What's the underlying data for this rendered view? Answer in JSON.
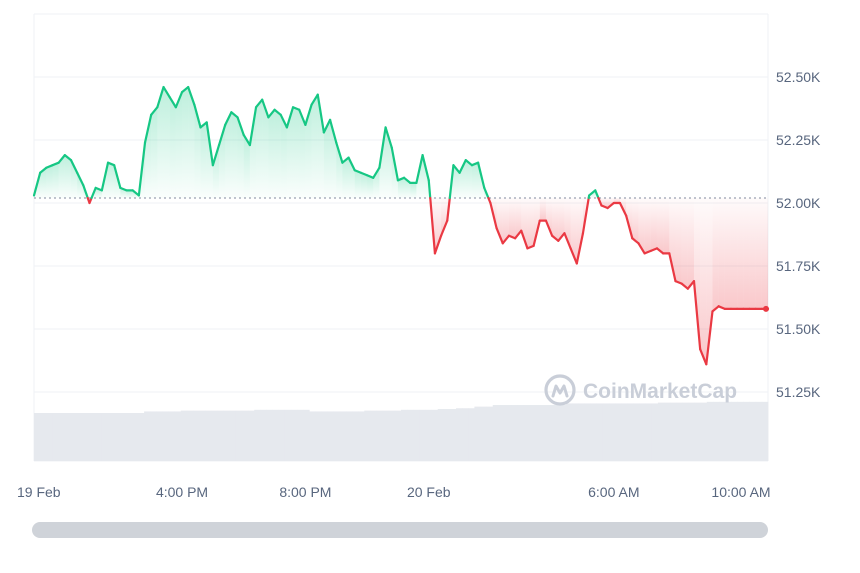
{
  "watermark": {
    "text": "CoinMarketCap",
    "icon": "coinmarketcap-logo-icon"
  },
  "colors": {
    "up": "#16c784",
    "down": "#ea3943",
    "grid": "#eff2f5",
    "volume": "#e6e9ee",
    "baseline": "#808a9d",
    "axis_text": "#58667e"
  },
  "chart_data": {
    "type": "line",
    "title": "",
    "xlabel": "",
    "ylabel": "",
    "baseline": 52020,
    "ylim": [
      51000,
      52700
    ],
    "y_ticks": [
      {
        "value": 51250,
        "label": "51.25K"
      },
      {
        "value": 51500,
        "label": "51.50K"
      },
      {
        "value": 51750,
        "label": "51.75K"
      },
      {
        "value": 52000,
        "label": "52.00K"
      },
      {
        "value": 52250,
        "label": "52.25K"
      },
      {
        "value": 52500,
        "label": "52.50K"
      }
    ],
    "x_ticks": [
      "19 Feb",
      "4:00 PM",
      "8:00 PM",
      "20 Feb",
      "6:00 AM",
      "10:00 AM"
    ],
    "x_tick_positions": [
      11.2,
      16,
      20,
      24,
      30,
      34
    ],
    "xlim": [
      11.2,
      35
    ],
    "series": [
      {
        "x": [
          11.2,
          11.4,
          11.6,
          11.8,
          12.0,
          12.2,
          12.4,
          12.6,
          12.8,
          13.0,
          13.2,
          13.4,
          13.6,
          13.8,
          14.0,
          14.2,
          14.4,
          14.6,
          14.8,
          15.0,
          15.2,
          15.4,
          15.6,
          15.8,
          16.0,
          16.2,
          16.4,
          16.6,
          16.8,
          17.0,
          17.2,
          17.4,
          17.6,
          17.8,
          18.0,
          18.2,
          18.4,
          18.6,
          18.8,
          19.0,
          19.2,
          19.4,
          19.6,
          19.8,
          20.0,
          20.2,
          20.4,
          20.6,
          20.8,
          21.0,
          21.2,
          21.4,
          21.6,
          21.8,
          22.0,
          22.2,
          22.4,
          22.6,
          22.8,
          23.0,
          23.2,
          23.4,
          23.6,
          23.8,
          24.0,
          24.2,
          24.4,
          24.6,
          24.8,
          25.0,
          25.2,
          25.4,
          25.6,
          25.8,
          26.0,
          26.2,
          26.4,
          26.6,
          26.8,
          27.0,
          27.2,
          27.4,
          27.6,
          27.8,
          28.0,
          28.2,
          28.4,
          28.6,
          28.8,
          29.0,
          29.2,
          29.4,
          29.6,
          29.8,
          30.0,
          30.2,
          30.4,
          30.6,
          30.8,
          31.0,
          31.2,
          31.4,
          31.6,
          31.8,
          32.0,
          32.2,
          32.4,
          32.6,
          32.8,
          33.0,
          33.2,
          33.4,
          33.6,
          33.8,
          34.0,
          34.2,
          34.4,
          34.6,
          34.8,
          35.0
        ],
        "y": [
          52030,
          52120,
          52140,
          52150,
          52160,
          52190,
          52170,
          52120,
          52070,
          52000,
          52060,
          52050,
          52160,
          52150,
          52060,
          52050,
          52050,
          52030,
          52240,
          52350,
          52380,
          52460,
          52420,
          52380,
          52440,
          52460,
          52390,
          52300,
          52320,
          52150,
          52230,
          52310,
          52360,
          52340,
          52270,
          52230,
          52380,
          52410,
          52340,
          52370,
          52350,
          52300,
          52380,
          52370,
          52310,
          52390,
          52430,
          52280,
          52330,
          52240,
          52160,
          52180,
          52130,
          52120,
          52110,
          52100,
          52140,
          52300,
          52220,
          52090,
          52100,
          52080,
          52080,
          52190,
          52090,
          51800,
          51870,
          51930,
          52150,
          52120,
          52170,
          52150,
          52160,
          52060,
          52000,
          51900,
          51840,
          51870,
          51860,
          51890,
          51820,
          51830,
          51930,
          51930,
          51870,
          51850,
          51880,
          51820,
          51760,
          51880,
          52030,
          52050,
          51990,
          51980,
          52000,
          52000,
          51950,
          51860,
          51840,
          51800,
          51810,
          51820,
          51800,
          51800,
          51690,
          51680,
          51660,
          51690,
          51420,
          51360,
          51570,
          51590,
          51580,
          51580,
          51580,
          51580,
          51580,
          51580,
          51580,
          51580
        ]
      }
    ],
    "volume": [
      0.6,
      0.6,
      0.6,
      0.6,
      0.6,
      0.6,
      0.6,
      0.6,
      0.6,
      0.6,
      0.6,
      0.6,
      0.6,
      0.6,
      0.6,
      0.6,
      0.6,
      0.6,
      0.62,
      0.62,
      0.62,
      0.62,
      0.62,
      0.62,
      0.63,
      0.63,
      0.63,
      0.63,
      0.63,
      0.63,
      0.63,
      0.63,
      0.63,
      0.63,
      0.63,
      0.63,
      0.64,
      0.64,
      0.64,
      0.64,
      0.64,
      0.64,
      0.64,
      0.64,
      0.64,
      0.62,
      0.62,
      0.62,
      0.62,
      0.62,
      0.62,
      0.62,
      0.62,
      0.62,
      0.63,
      0.63,
      0.63,
      0.63,
      0.63,
      0.63,
      0.64,
      0.64,
      0.64,
      0.64,
      0.64,
      0.64,
      0.65,
      0.65,
      0.65,
      0.66,
      0.66,
      0.66,
      0.68,
      0.68,
      0.68,
      0.7,
      0.7,
      0.7,
      0.7,
      0.7,
      0.7,
      0.7,
      0.7,
      0.7,
      0.7,
      0.7,
      0.7,
      0.72,
      0.72,
      0.72,
      0.72,
      0.72,
      0.72,
      0.72,
      0.72,
      0.72,
      0.72,
      0.72,
      0.72,
      0.72,
      0.72,
      0.72,
      0.73,
      0.73,
      0.73,
      0.73,
      0.73,
      0.73,
      0.73,
      0.73,
      0.74,
      0.74,
      0.74,
      0.74,
      0.74,
      0.74,
      0.74,
      0.74,
      0.74,
      0.74
    ]
  }
}
